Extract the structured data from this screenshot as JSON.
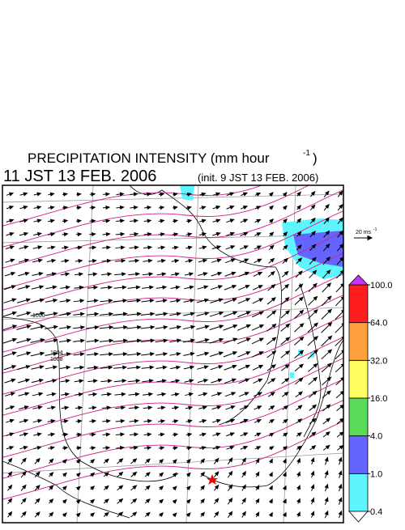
{
  "header": {
    "title": "PRECIPITATION INTENSITY (mm hour",
    "title_exponent": "-1",
    "title_close": ")",
    "valid_time": "11 JST 13 FEB. 2006",
    "init_time": "(init. 9 JST 13 FEB. 2006)"
  },
  "vector_legend": {
    "label": "20 ms",
    "exponent": "-1"
  },
  "isobar_labels": [
    "1000",
    "1004",
    "1008"
  ],
  "colorbar": {
    "ticks": [
      {
        "value": 0.4,
        "label": "0.4"
      },
      {
        "value": 1,
        "label": "1.0"
      },
      {
        "value": 4,
        "label": "4.0"
      },
      {
        "value": 16,
        "label": "16.0"
      },
      {
        "value": 32,
        "label": "32.0"
      },
      {
        "value": 64,
        "label": "64.0"
      },
      {
        "value": 100,
        "label": "100.0"
      }
    ],
    "colors": [
      "#5ff5ff",
      "#6464ff",
      "#5adc5a",
      "#ffff64",
      "#ffa03c",
      "#ff1e1e"
    ],
    "under_color": "#ffffff",
    "over_color": "#c832ff"
  }
}
